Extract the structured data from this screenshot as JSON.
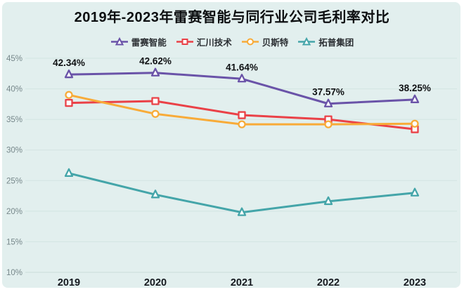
{
  "title": "2019年-2023年雷赛智能与同行业公司毛利率对比",
  "colors": {
    "page_background": "#ffffff",
    "card_background": "#e2efee",
    "gridline": "#d3e4e2",
    "axis_line": "#c9dcda",
    "y_label": "#76878a",
    "x_label": "#15191f",
    "title": "#0c0e10",
    "data_label": "#0e1012",
    "marker_fill": "#fdfefe"
  },
  "chart_data": {
    "type": "line",
    "title": "2019年-2023年雷赛智能与同行业公司毛利率对比",
    "categories": [
      "2019",
      "2020",
      "2021",
      "2022",
      "2023"
    ],
    "series": [
      {
        "name": "雷赛智能",
        "color": "#6a53a8",
        "marker": "triangle",
        "values": [
          42.34,
          42.62,
          41.64,
          37.57,
          38.25
        ],
        "labels": [
          "42.34%",
          "42.62%",
          "41.64%",
          "37.57%",
          "38.25%"
        ]
      },
      {
        "name": "汇川技术",
        "color": "#ea4147",
        "marker": "square",
        "values": [
          37.7,
          38.0,
          35.7,
          35.0,
          33.4
        ]
      },
      {
        "name": "贝斯特",
        "color": "#f8ab38",
        "marker": "circle",
        "values": [
          39.0,
          35.9,
          34.2,
          34.2,
          34.3
        ]
      },
      {
        "name": "拓普集团",
        "color": "#44a5a9",
        "marker": "triangle",
        "values": [
          26.2,
          22.7,
          19.8,
          21.6,
          23.0
        ]
      }
    ],
    "y_ticks": [
      "10%",
      "15%",
      "20%",
      "25%",
      "30%",
      "35%",
      "40%",
      "45%"
    ],
    "ylim": [
      10,
      45
    ],
    "xlabel": "",
    "ylabel": "",
    "grid": true,
    "legend_position": "top"
  }
}
